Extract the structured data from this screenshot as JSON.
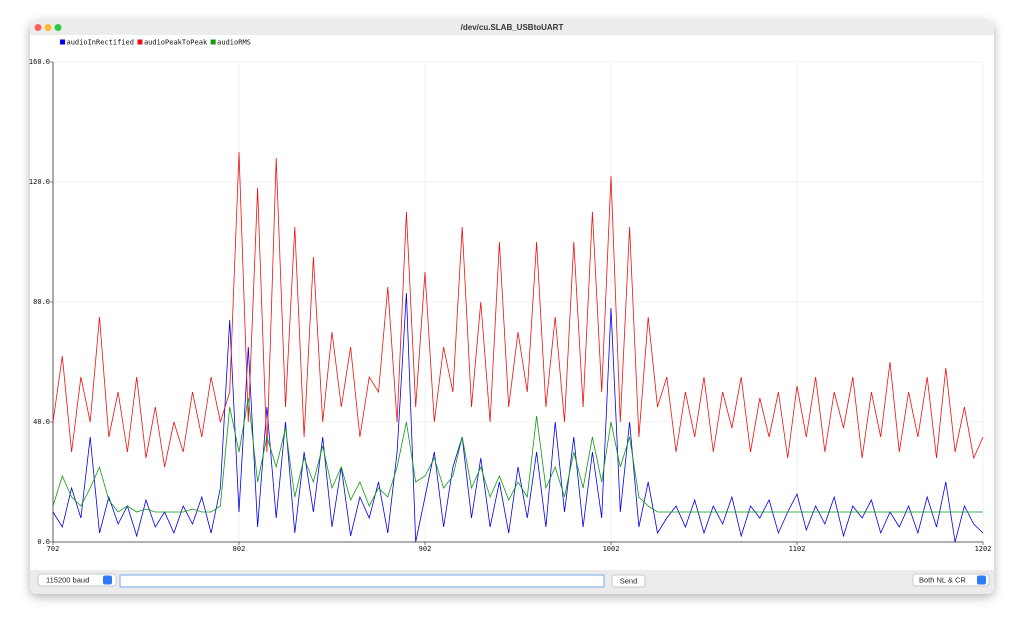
{
  "window": {
    "title": "/dev/cu.SLAB_USBtoUART"
  },
  "controls": {
    "baud": "115200 baud",
    "send": "Send",
    "line_ending": "Both NL & CR"
  },
  "chart_data": {
    "type": "line",
    "x": [
      702,
      707,
      712,
      717,
      722,
      727,
      732,
      737,
      742,
      747,
      752,
      757,
      762,
      767,
      772,
      777,
      782,
      787,
      792,
      797,
      802,
      807,
      812,
      817,
      822,
      827,
      832,
      837,
      842,
      847,
      852,
      857,
      862,
      867,
      872,
      877,
      882,
      887,
      892,
      897,
      902,
      907,
      912,
      917,
      922,
      927,
      932,
      937,
      942,
      947,
      952,
      957,
      962,
      967,
      972,
      977,
      982,
      987,
      992,
      997,
      1002,
      1007,
      1012,
      1017,
      1022,
      1027,
      1032,
      1037,
      1042,
      1047,
      1052,
      1057,
      1062,
      1067,
      1072,
      1077,
      1082,
      1087,
      1092,
      1097,
      1102,
      1107,
      1112,
      1117,
      1122,
      1127,
      1132,
      1137,
      1142,
      1147,
      1152,
      1157,
      1162,
      1167,
      1172,
      1177,
      1182,
      1187,
      1192,
      1197,
      1202
    ],
    "series": [
      {
        "name": "audioInRectified",
        "color": "#0000ee",
        "values": [
          10,
          5,
          18,
          8,
          35,
          3,
          15,
          6,
          12,
          2,
          14,
          5,
          10,
          3,
          12,
          6,
          15,
          3,
          18,
          74,
          10,
          65,
          5,
          45,
          8,
          40,
          3,
          30,
          10,
          35,
          5,
          25,
          2,
          15,
          8,
          20,
          3,
          30,
          83,
          0,
          15,
          30,
          5,
          25,
          35,
          8,
          28,
          5,
          20,
          3,
          25,
          8,
          30,
          5,
          40,
          10,
          35,
          5,
          30,
          8,
          78,
          10,
          40,
          5,
          20,
          3,
          8,
          12,
          5,
          14,
          3,
          12,
          6,
          15,
          2,
          12,
          8,
          14,
          3,
          10,
          16,
          4,
          12,
          6,
          15,
          2,
          12,
          8,
          14,
          3,
          10,
          5,
          12,
          3,
          15,
          5,
          20,
          0,
          12,
          6,
          3
        ]
      },
      {
        "name": "audioPeakToPeak",
        "color": "#ee1111",
        "values": [
          40,
          62,
          30,
          55,
          40,
          75,
          35,
          50,
          30,
          55,
          28,
          45,
          25,
          40,
          30,
          50,
          35,
          55,
          40,
          50,
          130,
          40,
          118,
          30,
          128,
          45,
          105,
          35,
          95,
          40,
          70,
          45,
          65,
          35,
          55,
          50,
          85,
          40,
          110,
          45,
          90,
          40,
          65,
          50,
          105,
          45,
          80,
          40,
          100,
          45,
          70,
          50,
          100,
          45,
          75,
          40,
          100,
          45,
          110,
          50,
          122,
          40,
          105,
          35,
          75,
          45,
          55,
          30,
          50,
          35,
          55,
          30,
          50,
          38,
          55,
          30,
          48,
          35,
          50,
          28,
          52,
          35,
          55,
          30,
          50,
          38,
          55,
          28,
          50,
          35,
          60,
          30,
          50,
          35,
          55,
          28,
          58,
          30,
          45,
          28,
          35
        ]
      },
      {
        "name": "audioRMS",
        "color": "#119911",
        "values": [
          12,
          22,
          15,
          12,
          18,
          25,
          14,
          10,
          12,
          10,
          11,
          10,
          10,
          10,
          10,
          11,
          10,
          10,
          12,
          45,
          30,
          48,
          20,
          35,
          25,
          38,
          15,
          28,
          20,
          32,
          18,
          25,
          14,
          20,
          12,
          18,
          15,
          25,
          40,
          20,
          22,
          28,
          18,
          22,
          35,
          18,
          25,
          15,
          22,
          14,
          20,
          15,
          42,
          18,
          25,
          15,
          30,
          18,
          35,
          20,
          40,
          25,
          35,
          15,
          12,
          10,
          10,
          10,
          10,
          10,
          10,
          10,
          10,
          10,
          10,
          10,
          10,
          10,
          10,
          10,
          10,
          10,
          10,
          10,
          10,
          10,
          10,
          10,
          10,
          10,
          10,
          10,
          10,
          10,
          10,
          10,
          10,
          10,
          10,
          10,
          10
        ]
      }
    ],
    "xlim": [
      702,
      1202
    ],
    "ylim": [
      0,
      160
    ],
    "xticks": [
      702,
      802,
      902,
      1002,
      1102,
      1202
    ],
    "yticks": [
      {
        "value": 0,
        "label": "0.0"
      },
      {
        "value": 40,
        "label": "40.0"
      },
      {
        "value": 80,
        "label": "80.0"
      },
      {
        "value": 120,
        "label": "120.0"
      },
      {
        "value": 160,
        "label": "160.0"
      }
    ],
    "grid": true,
    "legend": "top-left"
  }
}
